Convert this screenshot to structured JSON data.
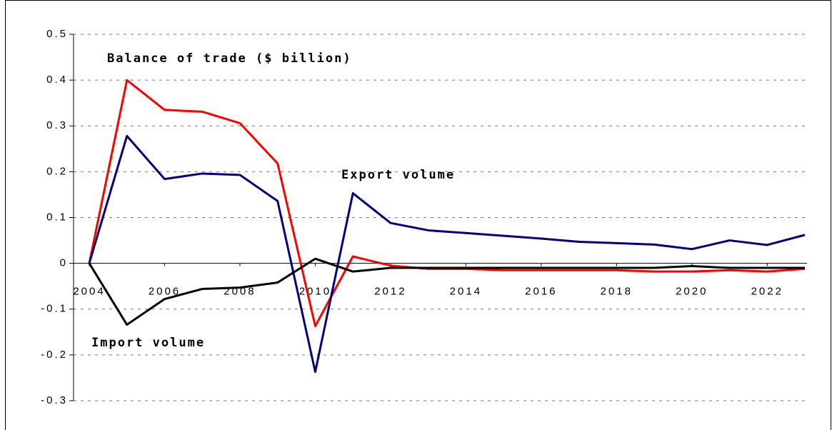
{
  "chart_data": {
    "type": "line",
    "x": [
      2004,
      2005,
      2006,
      2007,
      2008,
      2009,
      2010,
      2011,
      2012,
      2013,
      2014,
      2015,
      2016,
      2017,
      2018,
      2019,
      2020,
      2021,
      2022,
      2023
    ],
    "series": [
      {
        "name": "Balance of trade ($ billion)",
        "color": "#ff0000",
        "values": [
          0,
          0.4,
          0.335,
          0.331,
          0.306,
          0.218,
          -0.137,
          0.015,
          -0.005,
          -0.012,
          -0.012,
          -0.015,
          -0.015,
          -0.015,
          -0.015,
          -0.018,
          -0.018,
          -0.015,
          -0.018,
          -0.012
        ]
      },
      {
        "name": "Export volume",
        "color": "#000080",
        "values": [
          0,
          0.278,
          0.184,
          0.196,
          0.193,
          0.136,
          -0.237,
          0.153,
          0.088,
          0.072,
          0.066,
          0.06,
          0.054,
          0.047,
          0.044,
          0.041,
          0.031,
          0.05,
          0.04,
          0.062
        ]
      },
      {
        "name": "Import volume",
        "color": "#000000",
        "values": [
          0,
          -0.134,
          -0.078,
          -0.056,
          -0.053,
          -0.042,
          0.01,
          -0.018,
          -0.01,
          -0.01,
          -0.01,
          -0.01,
          -0.01,
          -0.01,
          -0.01,
          -0.01,
          -0.006,
          -0.01,
          -0.01,
          -0.01
        ]
      }
    ],
    "xlim": [
      2004,
      2023
    ],
    "xticks": [
      2004,
      2006,
      2008,
      2010,
      2012,
      2014,
      2016,
      2018,
      2020,
      2022
    ],
    "ylim": [
      -0.3,
      0.5
    ],
    "yticks": [
      -0.3,
      -0.2,
      -0.1,
      0,
      0.1,
      0.2,
      0.3,
      0.4,
      0.5
    ],
    "grid": true
  }
}
